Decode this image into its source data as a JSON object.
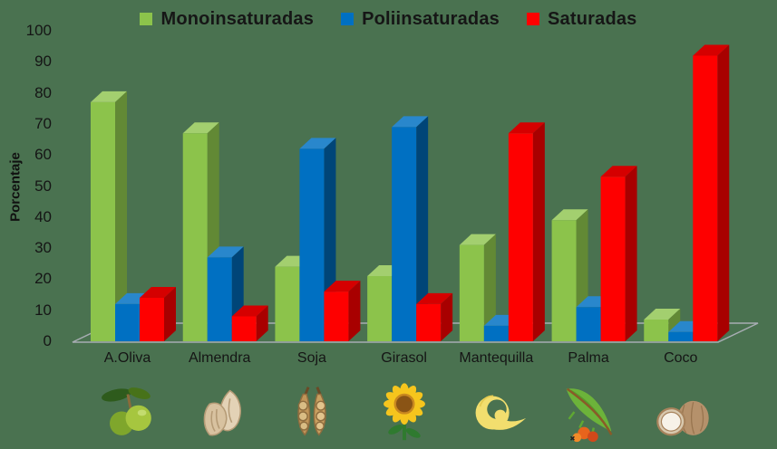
{
  "chart_data": {
    "type": "bar",
    "style": "3d-grouped-bars",
    "title": "",
    "ylabel": "Porcentaje",
    "xlabel": "",
    "ylim": [
      0,
      100
    ],
    "yticks": [
      0,
      10,
      20,
      30,
      40,
      50,
      60,
      70,
      80,
      90,
      100
    ],
    "grid": false,
    "legend_position": "top",
    "background_color": "#4A7250",
    "floor_outline_color": "#A8ADB3",
    "text_color": "#151515",
    "categories": [
      "A.Oliva",
      "Almendra",
      "Soja",
      "Girasol",
      "Mantequilla",
      "Palma",
      "Coco"
    ],
    "series": [
      {
        "name": "Monoinsaturadas",
        "color": "#8CC34B",
        "values": [
          77,
          67,
          24,
          21,
          31,
          39,
          7
        ]
      },
      {
        "name": "Poliinsaturadas",
        "color": "#0070C2",
        "values": [
          12,
          27,
          62,
          69,
          5,
          11,
          3
        ]
      },
      {
        "name": "Saturadas",
        "color": "#FE0000",
        "values": [
          14,
          8,
          16,
          12,
          67,
          53,
          92
        ]
      }
    ],
    "category_icons": [
      "olive-icon",
      "almond-icon",
      "soybean-pods-icon",
      "sunflower-icon",
      "butter-curl-icon",
      "palm-frond-icon",
      "coconut-icon"
    ]
  }
}
